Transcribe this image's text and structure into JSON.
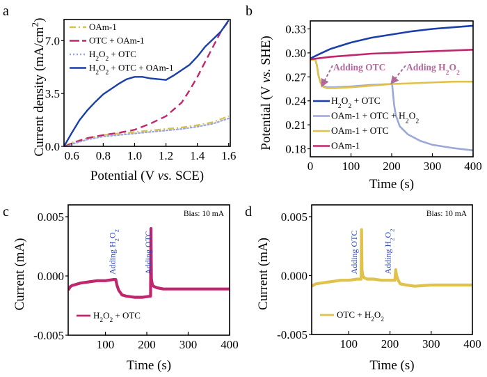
{
  "figure": {
    "panels": [
      "a",
      "b",
      "c",
      "d"
    ]
  },
  "chart_data": [
    {
      "id": "a",
      "panel_letter": "a",
      "type": "line",
      "title": "",
      "xlabel_parts": [
        "Potential (V ",
        "vs.",
        " SCE)"
      ],
      "ylabel_parts": [
        "Current density (mA/cm",
        "2",
        ")"
      ],
      "xlim": [
        0.55,
        1.61
      ],
      "ylim": [
        0,
        8.4
      ],
      "xticks": [
        0.6,
        0.8,
        1.0,
        1.2,
        1.4,
        1.6
      ],
      "xtick_labels": [
        "0.6",
        "0.8",
        "1.0",
        "1.2",
        "1.4",
        "1.6"
      ],
      "yticks": [
        0,
        3.5,
        7.0
      ],
      "ytick_labels": [
        "0.0",
        "3.5",
        "7.0"
      ],
      "legend_position": "top-left",
      "series": [
        {
          "name": "OAm-1",
          "label": [
            [
              "OAm-1",
              ""
            ]
          ],
          "color": "#d9c24a",
          "style": "dashdot",
          "x": [
            0.55,
            0.6,
            0.7,
            0.8,
            0.9,
            1.0,
            1.1,
            1.2,
            1.3,
            1.4,
            1.5,
            1.55,
            1.6
          ],
          "y": [
            0.0,
            0.25,
            0.55,
            0.75,
            0.85,
            0.95,
            1.05,
            1.15,
            1.25,
            1.4,
            1.6,
            1.8,
            2.0
          ]
        },
        {
          "name": "OTC + OAm-1",
          "label": [
            [
              "OTC + OAm-1",
              ""
            ]
          ],
          "color": "#c0266e",
          "style": "dashed",
          "x": [
            0.56,
            0.6,
            0.7,
            0.8,
            0.9,
            1.0,
            1.1,
            1.2,
            1.3,
            1.35,
            1.4,
            1.45,
            1.5,
            1.55,
            1.6
          ],
          "y": [
            0.0,
            0.2,
            0.55,
            0.75,
            0.9,
            1.1,
            1.5,
            2.0,
            2.9,
            3.7,
            4.6,
            5.6,
            6.6,
            7.6,
            8.3
          ]
        },
        {
          "name": "H2O2 + OTC",
          "label": [
            [
              "H",
              ""
            ],
            [
              "2",
              "sub"
            ],
            [
              "O",
              ""
            ],
            [
              "2",
              "sub"
            ],
            [
              " + OTC",
              ""
            ]
          ],
          "color": "#9aa5e0",
          "style": "dotted",
          "x": [
            0.57,
            0.6,
            0.7,
            0.8,
            0.9,
            1.0,
            1.1,
            1.2,
            1.3,
            1.4,
            1.5,
            1.6
          ],
          "y": [
            0.0,
            0.15,
            0.45,
            0.65,
            0.75,
            0.85,
            0.95,
            1.05,
            1.15,
            1.3,
            1.5,
            1.85
          ]
        },
        {
          "name": "H2O2 + OTC + OAm-1",
          "label": [
            [
              "H",
              ""
            ],
            [
              "2",
              "sub"
            ],
            [
              "O",
              ""
            ],
            [
              "2",
              "sub"
            ],
            [
              " + OTC + OAm-1",
              ""
            ]
          ],
          "color": "#1a3fa8",
          "style": "solid",
          "x": [
            0.55,
            0.6,
            0.65,
            0.7,
            0.75,
            0.8,
            0.85,
            0.9,
            0.95,
            1.0,
            1.05,
            1.1,
            1.15,
            1.2,
            1.25,
            1.3,
            1.35,
            1.4,
            1.45,
            1.5,
            1.55,
            1.6
          ],
          "y": [
            0.0,
            0.9,
            1.75,
            2.4,
            2.95,
            3.45,
            3.8,
            4.15,
            4.45,
            4.6,
            4.6,
            4.5,
            4.45,
            4.4,
            4.7,
            5.05,
            5.4,
            5.95,
            6.6,
            7.1,
            7.6,
            8.35
          ]
        }
      ]
    },
    {
      "id": "b",
      "panel_letter": "b",
      "type": "line",
      "title": "",
      "xlabel_parts": [
        "Time (s)"
      ],
      "ylabel_parts": [
        "Potential (V ",
        "vs.",
        " SHE)"
      ],
      "xlim": [
        0,
        400
      ],
      "ylim": [
        0.17,
        0.34
      ],
      "xticks": [
        0,
        100,
        200,
        300,
        400
      ],
      "xtick_labels": [
        "0",
        "100",
        "200",
        "300",
        "400"
      ],
      "yticks": [
        0.18,
        0.21,
        0.24,
        0.27,
        0.3,
        0.33
      ],
      "ytick_labels": [
        "0.18",
        "0.21",
        "0.24",
        "0.27",
        "0.30",
        "0.33"
      ],
      "legend_position": "bottom-left",
      "annotations": [
        {
          "text": [
            [
              "Adding OTC",
              ""
            ]
          ],
          "x": 15,
          "arrow_to": [
            28,
            0.259
          ]
        },
        {
          "text": [
            [
              "Adding H",
              ""
            ],
            [
              "2",
              "sub"
            ],
            [
              "O",
              ""
            ],
            [
              "2",
              "sub"
            ]
          ],
          "x": 205,
          "arrow_to": [
            200,
            0.262
          ]
        }
      ],
      "series": [
        {
          "name": "H2O2 + OTC",
          "label": [
            [
              "H",
              ""
            ],
            [
              "2",
              "sub"
            ],
            [
              "O",
              ""
            ],
            [
              "2",
              "sub"
            ],
            [
              " + OTC",
              ""
            ]
          ],
          "color": "#1a3fa8",
          "x": [
            0,
            20,
            50,
            100,
            150,
            200,
            250,
            300,
            350,
            400
          ],
          "y": [
            0.293,
            0.298,
            0.305,
            0.313,
            0.319,
            0.323,
            0.327,
            0.33,
            0.332,
            0.334
          ]
        },
        {
          "name": "OAm-1 + OTC + H2O2",
          "label": [
            [
              "OAm-1 + OTC + H",
              ""
            ],
            [
              "2",
              "sub"
            ],
            [
              "O",
              ""
            ],
            [
              "2",
              "sub"
            ]
          ],
          "color": "#9aa8d8",
          "x": [
            0,
            12,
            16,
            20,
            25,
            30,
            40,
            60,
            100,
            150,
            200,
            201,
            203,
            206,
            210,
            220,
            240,
            270,
            300,
            350,
            400
          ],
          "y": [
            0.291,
            0.292,
            0.285,
            0.272,
            0.263,
            0.259,
            0.257,
            0.257,
            0.258,
            0.26,
            0.261,
            0.261,
            0.25,
            0.235,
            0.222,
            0.208,
            0.198,
            0.19,
            0.185,
            0.181,
            0.178
          ]
        },
        {
          "name": "OAm-1 + OTC",
          "label": [
            [
              "OAm-1 + OTC",
              ""
            ]
          ],
          "color": "#e0c24a",
          "x": [
            0,
            12,
            16,
            20,
            25,
            30,
            40,
            60,
            100,
            150,
            200,
            250,
            300,
            350,
            400
          ],
          "y": [
            0.291,
            0.292,
            0.285,
            0.272,
            0.263,
            0.258,
            0.256,
            0.256,
            0.257,
            0.259,
            0.261,
            0.262,
            0.263,
            0.264,
            0.264
          ]
        },
        {
          "name": "OAm-1",
          "label": [
            [
              "OAm-1",
              ""
            ]
          ],
          "color": "#c0266e",
          "x": [
            0,
            50,
            100,
            150,
            200,
            250,
            300,
            350,
            400
          ],
          "y": [
            0.292,
            0.295,
            0.297,
            0.299,
            0.3,
            0.301,
            0.302,
            0.303,
            0.304
          ]
        }
      ]
    },
    {
      "id": "c",
      "panel_letter": "c",
      "type": "line",
      "title": "",
      "xlabel_parts": [
        "Time (s)"
      ],
      "ylabel_parts": [
        "Current (mA)"
      ],
      "xlim": [
        10,
        400
      ],
      "ylim": [
        -0.005,
        0.006
      ],
      "xticks": [
        100,
        200,
        300,
        400
      ],
      "xtick_labels": [
        "100",
        "200",
        "300",
        "400"
      ],
      "yticks": [
        -0.005,
        0.0,
        0.005
      ],
      "ytick_labels": [
        "-0.005",
        "0.000",
        "0.005"
      ],
      "legend_position": "bottom-left",
      "text_box": "Bias: 10 mA",
      "annotations": [
        {
          "text": [
            [
              "Adding H",
              ""
            ],
            [
              "2",
              "sub"
            ],
            [
              "O",
              ""
            ],
            [
              "2",
              "sub"
            ]
          ],
          "x": 122
        },
        {
          "text": [
            [
              "Adding OTC",
              ""
            ]
          ],
          "x": 208
        }
      ],
      "series": [
        {
          "name": "H2O2 + OTC",
          "label": [
            [
              "H",
              ""
            ],
            [
              "2",
              "sub"
            ],
            [
              "O",
              ""
            ],
            [
              "2",
              "sub"
            ],
            [
              " + OTC",
              ""
            ]
          ],
          "color": "#c0266e",
          "x": [
            10,
            15,
            20,
            30,
            40,
            60,
            80,
            100,
            120,
            125,
            128,
            132,
            136,
            140,
            150,
            170,
            190,
            209,
            210,
            211,
            212,
            214,
            218,
            225,
            240,
            270,
            300,
            350,
            400
          ],
          "y": [
            -0.0012,
            -0.0009,
            -0.0008,
            -0.0007,
            -0.0006,
            -0.0005,
            -0.0004,
            -0.0004,
            -0.0003,
            -0.0003,
            -0.0008,
            -0.0012,
            -0.0014,
            -0.0016,
            -0.0017,
            -0.0018,
            -0.0018,
            -0.0017,
            0.004,
            -0.0002,
            -0.0005,
            -0.0008,
            -0.0009,
            -0.001,
            -0.0011,
            -0.0011,
            -0.0011,
            -0.0011,
            -0.0011
          ]
        }
      ]
    },
    {
      "id": "d",
      "panel_letter": "d",
      "type": "line",
      "title": "",
      "xlabel_parts": [
        "Time (s)"
      ],
      "ylabel_parts": [
        "Current (mA)"
      ],
      "xlim": [
        10,
        400
      ],
      "ylim": [
        -0.005,
        0.006
      ],
      "xticks": [
        100,
        200,
        300,
        400
      ],
      "xtick_labels": [
        "100",
        "200",
        "300",
        "400"
      ],
      "yticks": [
        -0.005,
        0.0,
        0.005
      ],
      "ytick_labels": [
        "-0.005",
        "0.000",
        "0.005"
      ],
      "legend_position": "bottom-left",
      "text_box": "Bias: 10 mA",
      "annotations": [
        {
          "text": [
            [
              "Adding OTC",
              ""
            ]
          ],
          "x": 118
        },
        {
          "text": [
            [
              "Adding H",
              ""
            ],
            [
              "2",
              "sub"
            ],
            [
              "O",
              ""
            ],
            [
              "2",
              "sub"
            ]
          ],
          "x": 200
        }
      ],
      "series": [
        {
          "name": "OTC + H2O2",
          "label": [
            [
              "OTC + H",
              ""
            ],
            [
              "2",
              "sub"
            ],
            [
              "O",
              ""
            ],
            [
              "2",
              "sub"
            ]
          ],
          "color": "#e0c24a",
          "x": [
            10,
            20,
            40,
            60,
            80,
            100,
            120,
            130,
            131,
            132,
            134,
            138,
            145,
            160,
            180,
            200,
            212,
            214,
            216,
            220,
            225,
            240,
            260,
            300,
            350,
            400
          ],
          "y": [
            -0.0009,
            -0.0007,
            -0.0006,
            -0.0005,
            -0.0004,
            -0.0004,
            -0.0003,
            -0.0003,
            0.0039,
            0.0005,
            0.0,
            -0.0002,
            -0.0003,
            -0.0003,
            -0.0004,
            -0.0004,
            -0.0004,
            0.0005,
            0.0,
            -0.0004,
            -0.0007,
            -0.0008,
            -0.0009,
            -0.0008,
            -0.0008,
            -0.0008
          ]
        }
      ]
    }
  ]
}
